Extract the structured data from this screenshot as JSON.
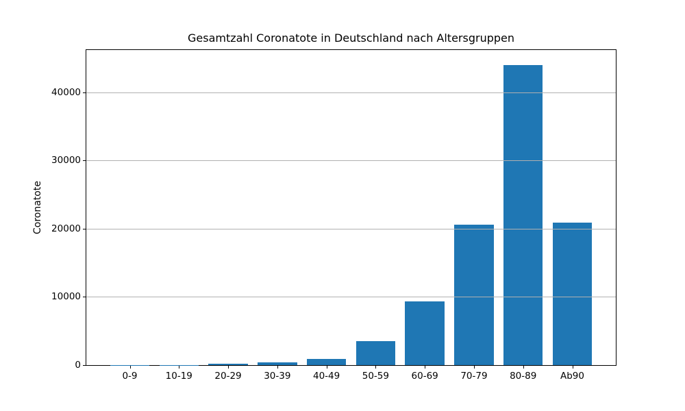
{
  "chart_data": {
    "type": "bar",
    "title": "Gesamtzahl Coronatote in Deutschland nach Altersgruppen",
    "xlabel": "",
    "ylabel": "Coronatote",
    "categories": [
      "0-9",
      "10-19",
      "20-29",
      "30-39",
      "40-49",
      "50-59",
      "60-69",
      "70-79",
      "80-89",
      "Ab90"
    ],
    "values": [
      25,
      50,
      200,
      420,
      870,
      3550,
      9350,
      20600,
      44000,
      20900
    ],
    "yticks": [
      0,
      10000,
      20000,
      30000,
      40000
    ],
    "ylim": [
      0,
      46200
    ],
    "grid": "horizontal-on",
    "grid_above_bars": true,
    "legend_position": "none",
    "bar_color": "#1f77b4",
    "grid_color": "#b0b0b0",
    "axis_color": "#000000",
    "text_color": "#000000",
    "background_color": "#ffffff"
  }
}
